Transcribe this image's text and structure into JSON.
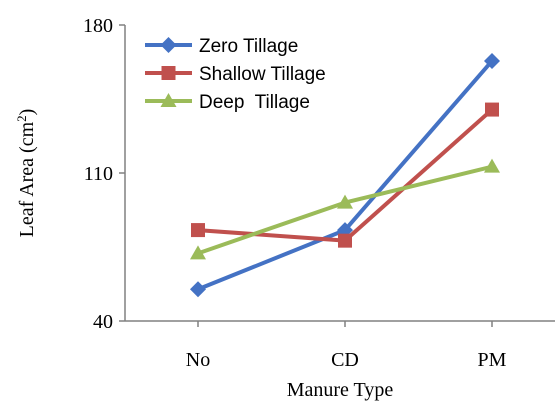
{
  "chart_data": {
    "type": "line",
    "title": "",
    "xlabel": "Manure Type",
    "ylabel": "Leaf Area (cm",
    "ylabel_sup": "2",
    "ylabel_close": ")",
    "categories": [
      "No",
      "CD",
      "PM"
    ],
    "ylim": [
      40,
      180
    ],
    "yticks": [
      40,
      110,
      180
    ],
    "ytick_labels": [
      "40",
      "110",
      "180"
    ],
    "grid": false,
    "legend_position": "top-left",
    "series": [
      {
        "name": "Zero Tillage",
        "values": [
          55,
          83,
          163
        ],
        "color": "#4472C4",
        "marker": "diamond"
      },
      {
        "name": "Shallow Tillage",
        "values": [
          83,
          78,
          140
        ],
        "color": "#C0504D",
        "marker": "square"
      },
      {
        "name": "Deep  Tillage",
        "values": [
          72,
          96,
          113
        ],
        "color": "#9BBB59",
        "marker": "triangle"
      }
    ]
  }
}
